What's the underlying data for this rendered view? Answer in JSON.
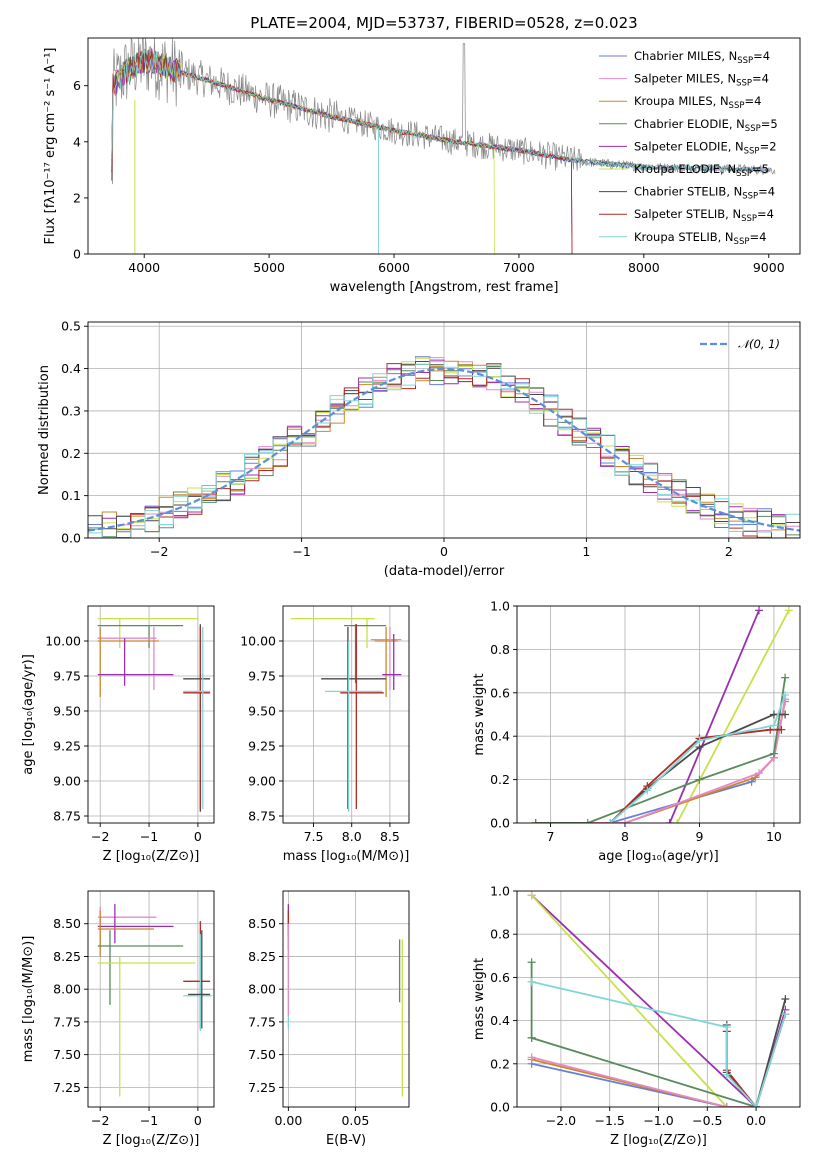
{
  "figure_title": "PLATE=2004, MJD=53737, FIBERID=0528, z=0.023",
  "series": [
    {
      "name": "Chabrier MILES",
      "nssp": "4",
      "color": "#6a7fd6"
    },
    {
      "name": "Salpeter MILES",
      "nssp": "4",
      "color": "#e58ac8"
    },
    {
      "name": "Kroupa MILES",
      "nssp": "4",
      "color": "#c8892e"
    },
    {
      "name": "Chabrier ELODIE",
      "nssp": "5",
      "color": "#5a8a5e"
    },
    {
      "name": "Salpeter ELODIE",
      "nssp": "2",
      "color": "#9b2fb0"
    },
    {
      "name": "Kroupa ELODIE",
      "nssp": "5",
      "color": "#c9e04a"
    },
    {
      "name": "Chabrier STELIB",
      "nssp": "4",
      "color": "#4a4a4a"
    },
    {
      "name": "Salpeter STELIB",
      "nssp": "4",
      "color": "#b22a22"
    },
    {
      "name": "Kroupa STELIB",
      "nssp": "4",
      "color": "#7fd6d8"
    }
  ],
  "chart_data": [
    {
      "id": "spectrum",
      "type": "line",
      "xlabel": "wavelength [Angstrom, rest frame]",
      "ylabel": "Flux [fλ10⁻¹⁷ erg cm⁻² s⁻¹ A⁻¹]",
      "xlim": [
        3550,
        9250
      ],
      "ylim": [
        0,
        7.7
      ],
      "xticks": [
        4000,
        5000,
        6000,
        7000,
        8000,
        9000
      ],
      "yticks": [
        0,
        2,
        4,
        6
      ],
      "grid": false,
      "legend": "top-right",
      "data_color": "#888888",
      "model_shape": {
        "x": [
          3750,
          3850,
          3950,
          4050,
          4200,
          4500,
          5000,
          5500,
          6000,
          6500,
          7000,
          7500,
          8000,
          8500,
          9000
        ],
        "y": [
          6.0,
          6.5,
          6.8,
          6.9,
          6.6,
          6.2,
          5.5,
          4.9,
          4.4,
          4.0,
          3.7,
          3.3,
          3.1,
          3.05,
          3.0
        ]
      }
    },
    {
      "id": "residuals",
      "type": "step",
      "xlabel": "(data-model)/error",
      "ylabel": "Normed distribution",
      "xlim": [
        -2.5,
        2.5
      ],
      "ylim": [
        0,
        0.51
      ],
      "xticks": [
        -2,
        -1,
        0,
        1,
        2
      ],
      "yticks": [
        0.0,
        0.1,
        0.2,
        0.3,
        0.4,
        0.5
      ],
      "grid": true,
      "legend": "top-right",
      "reference_curve": {
        "label": "𝒩(0, 1)",
        "mean": 0,
        "sigma": 1,
        "color": "#5b8fd9"
      }
    },
    {
      "id": "age_vs_Z",
      "type": "errorbar",
      "xlabel": "Z [log₁₀(Z/Z⊙)]",
      "ylabel": "age  [log₁₀(age/yr)]",
      "xlim": [
        -2.25,
        0.33
      ],
      "ylim": [
        8.7,
        10.25
      ],
      "xticks": [
        -2,
        -1,
        0
      ],
      "yticks": [
        8.75,
        9.0,
        9.25,
        9.5,
        9.75,
        10.0
      ],
      "grid": true,
      "points": [
        {
          "x": -1.6,
          "y": 10.16,
          "xlo": -2.05,
          "xhi": 0.0,
          "ylo": 9.95,
          "yhi": 10.16,
          "s": 5
        },
        {
          "x": -1.0,
          "y": 10.11,
          "xlo": -2.05,
          "xhi": -0.3,
          "ylo": 9.95,
          "yhi": 10.11,
          "s": 3
        },
        {
          "x": -0.9,
          "y": 10.02,
          "xlo": -2.05,
          "xhi": -0.85,
          "ylo": 9.65,
          "yhi": 10.1,
          "s": 1
        },
        {
          "x": -2.0,
          "y": 10.0,
          "xlo": -2.05,
          "xhi": -0.8,
          "ylo": 9.6,
          "yhi": 10.1,
          "s": 2
        },
        {
          "x": -1.5,
          "y": 9.76,
          "xlo": -2.05,
          "xhi": -0.5,
          "ylo": 9.68,
          "yhi": 10.02,
          "s": 4
        },
        {
          "x": 0.05,
          "y": 9.73,
          "xlo": -0.3,
          "xhi": 0.25,
          "ylo": 8.78,
          "yhi": 10.12,
          "s": 6
        },
        {
          "x": 0.05,
          "y": 9.63,
          "xlo": -0.3,
          "xhi": 0.25,
          "ylo": 8.8,
          "yhi": 10.1,
          "s": 7
        },
        {
          "x": 0.1,
          "y": 9.64,
          "xlo": -0.3,
          "xhi": 0.25,
          "ylo": 8.8,
          "yhi": 10.1,
          "s": 8
        }
      ]
    },
    {
      "id": "age_vs_mass",
      "type": "errorbar",
      "xlabel": "mass [log₁₀(M/M⊙)]",
      "ylabel": "",
      "xlim": [
        7.1,
        8.75
      ],
      "ylim": [
        8.7,
        10.25
      ],
      "xticks": [
        7.5,
        8.0,
        8.5
      ],
      "yticks": [
        8.75,
        9.0,
        9.25,
        9.5,
        9.75,
        10.0
      ],
      "grid": true,
      "points": [
        {
          "x": 8.2,
          "y": 10.16,
          "xlo": 7.2,
          "xhi": 8.3,
          "ylo": 9.95,
          "yhi": 10.16,
          "s": 5
        },
        {
          "x": 8.05,
          "y": 10.11,
          "xlo": 7.9,
          "xhi": 8.45,
          "ylo": 9.7,
          "yhi": 10.12,
          "s": 3
        },
        {
          "x": 8.5,
          "y": 10.01,
          "xlo": 8.25,
          "xhi": 8.65,
          "ylo": 9.65,
          "yhi": 10.1,
          "s": 1
        },
        {
          "x": 8.45,
          "y": 10.0,
          "xlo": 8.3,
          "xhi": 8.6,
          "ylo": 9.6,
          "yhi": 10.1,
          "s": 2
        },
        {
          "x": 8.55,
          "y": 9.76,
          "xlo": 8.4,
          "xhi": 8.65,
          "ylo": 9.65,
          "yhi": 10.05,
          "s": 4
        },
        {
          "x": 7.95,
          "y": 9.73,
          "xlo": 7.6,
          "xhi": 8.45,
          "ylo": 8.8,
          "yhi": 10.1,
          "s": 6
        },
        {
          "x": 8.06,
          "y": 9.63,
          "xlo": 7.85,
          "xhi": 8.42,
          "ylo": 8.8,
          "yhi": 10.12,
          "s": 7
        },
        {
          "x": 7.96,
          "y": 9.64,
          "xlo": 7.65,
          "xhi": 8.4,
          "ylo": 8.78,
          "yhi": 10.0,
          "s": 8
        }
      ]
    },
    {
      "id": "weight_vs_age",
      "type": "line",
      "xlabel": "age  [log₁₀(age/yr)]",
      "ylabel": "mass weight",
      "xlim": [
        6.55,
        10.35
      ],
      "ylim": [
        0,
        1.0
      ],
      "xticks": [
        7,
        8,
        9,
        10
      ],
      "yticks": [
        0.0,
        0.2,
        0.4,
        0.6,
        0.8,
        1.0
      ],
      "grid": true,
      "series": [
        {
          "s": 4,
          "x": [
            8.6,
            9.8
          ],
          "y": [
            0.0,
            0.98
          ]
        },
        {
          "s": 5,
          "x": [
            8.7,
            10.2
          ],
          "y": [
            0.0,
            0.98
          ]
        },
        {
          "s": 0,
          "x": [
            6.8,
            7.8,
            9.7,
            10.0,
            10.15
          ],
          "y": [
            0.0,
            0.0,
            0.19,
            0.3,
            0.57
          ]
        },
        {
          "s": 2,
          "x": [
            6.8,
            8.0,
            9.75,
            10.0,
            10.15
          ],
          "y": [
            0.0,
            0.0,
            0.21,
            0.3,
            0.56
          ]
        },
        {
          "s": 1,
          "x": [
            6.8,
            8.0,
            9.8,
            10.0,
            10.15
          ],
          "y": [
            0.0,
            0.0,
            0.23,
            0.3,
            0.57
          ]
        },
        {
          "s": 3,
          "x": [
            6.8,
            7.5,
            9.0,
            10.0,
            10.15
          ],
          "y": [
            0.0,
            0.0,
            0.2,
            0.32,
            0.67
          ]
        },
        {
          "s": 6,
          "x": [
            7.8,
            8.3,
            9.0,
            10.0,
            10.15
          ],
          "y": [
            0.0,
            0.16,
            0.35,
            0.5,
            0.5
          ]
        },
        {
          "s": 7,
          "x": [
            7.8,
            8.3,
            9.0,
            9.95,
            10.1
          ],
          "y": [
            0.0,
            0.17,
            0.39,
            0.43,
            0.43
          ]
        },
        {
          "s": 8,
          "x": [
            7.8,
            8.3,
            9.0,
            10.0,
            10.15
          ],
          "y": [
            0.0,
            0.15,
            0.38,
            0.45,
            0.59
          ]
        }
      ]
    },
    {
      "id": "mass_vs_Z",
      "type": "errorbar",
      "xlabel": "Z [log₁₀(Z/Z⊙)]",
      "ylabel": "mass [log₁₀(M/M⊙)]",
      "xlim": [
        -2.25,
        0.33
      ],
      "ylim": [
        7.1,
        8.75
      ],
      "xticks": [
        -2,
        -1,
        0
      ],
      "yticks": [
        7.25,
        7.5,
        7.75,
        8.0,
        8.25,
        8.5
      ],
      "grid": true,
      "points": [
        {
          "x": -2.0,
          "y": 8.55,
          "xlo": -2.05,
          "xhi": -0.85,
          "ylo": 8.3,
          "yhi": 8.63,
          "s": 1
        },
        {
          "x": -1.7,
          "y": 8.48,
          "xlo": -2.05,
          "xhi": -0.5,
          "ylo": 8.35,
          "yhi": 8.65,
          "s": 4
        },
        {
          "x": -2.0,
          "y": 8.46,
          "xlo": -2.05,
          "xhi": -0.9,
          "ylo": 8.25,
          "yhi": 8.6,
          "s": 2
        },
        {
          "x": -1.8,
          "y": 8.33,
          "xlo": -2.05,
          "xhi": -0.3,
          "ylo": 7.88,
          "yhi": 8.45,
          "s": 3
        },
        {
          "x": -1.6,
          "y": 8.2,
          "xlo": -2.05,
          "xhi": -0.05,
          "ylo": 7.18,
          "yhi": 8.25,
          "s": 5
        },
        {
          "x": 0.05,
          "y": 8.06,
          "xlo": -0.3,
          "xhi": 0.25,
          "ylo": 7.7,
          "yhi": 8.52,
          "s": 7
        },
        {
          "x": 0.05,
          "y": 7.95,
          "xlo": -0.3,
          "xhi": 0.3,
          "ylo": 7.68,
          "yhi": 8.42,
          "s": 8
        },
        {
          "x": 0.08,
          "y": 7.96,
          "xlo": -0.2,
          "xhi": 0.25,
          "ylo": 7.7,
          "yhi": 8.45,
          "s": 6
        }
      ]
    },
    {
      "id": "mass_vs_EBV",
      "type": "errorbar",
      "xlabel": "E(B-V)",
      "ylabel": "",
      "xlim": [
        -0.004,
        0.09
      ],
      "ylim": [
        7.1,
        8.75
      ],
      "xticks": [
        0.0,
        0.05
      ],
      "yticks": [
        7.25,
        7.5,
        7.75,
        8.0,
        8.25,
        8.5
      ],
      "grid": true,
      "points": [
        {
          "x": 0.0,
          "y": 8.55,
          "xlo": 0.0,
          "xhi": 0.0,
          "ylo": 8.3,
          "yhi": 8.65,
          "s": 4
        },
        {
          "x": 0.0,
          "y": 8.46,
          "xlo": 0.0,
          "xhi": 0.0,
          "ylo": 8.3,
          "yhi": 8.6,
          "s": 7
        },
        {
          "x": 0.0,
          "y": 8.1,
          "xlo": 0.0,
          "xhi": 0.0,
          "ylo": 7.7,
          "yhi": 8.4,
          "s": 8
        },
        {
          "x": 0.0,
          "y": 8.05,
          "xlo": 0.0,
          "xhi": 0.0,
          "ylo": 7.8,
          "yhi": 8.5,
          "s": 1
        },
        {
          "x": 0.085,
          "y": 8.2,
          "xlo": 0.085,
          "xhi": 0.085,
          "ylo": 7.18,
          "yhi": 8.38,
          "s": 5
        },
        {
          "x": 0.083,
          "y": 8.3,
          "xlo": 0.083,
          "xhi": 0.083,
          "ylo": 7.9,
          "yhi": 8.38,
          "s": 3
        }
      ]
    },
    {
      "id": "weight_vs_Z",
      "type": "line",
      "xlabel": "Z [log₁₀(Z/Z⊙)]",
      "ylabel": "mass weight",
      "xlim": [
        -2.45,
        0.45
      ],
      "ylim": [
        0,
        1.0
      ],
      "xticks": [
        -2.0,
        -1.5,
        -1.0,
        -0.5,
        0.0
      ],
      "yticks": [
        0.0,
        0.2,
        0.4,
        0.6,
        0.8,
        1.0
      ],
      "grid": true,
      "series": [
        {
          "s": 4,
          "x": [
            -2.3,
            0.0,
            0.3
          ],
          "y": [
            0.98,
            0.0,
            0.45
          ]
        },
        {
          "s": 5,
          "x": [
            -2.3,
            -0.3,
            0.0
          ],
          "y": [
            0.98,
            0.0,
            0.0
          ]
        },
        {
          "s": 0,
          "x": [
            -2.3,
            -0.3,
            0.0
          ],
          "y": [
            0.2,
            0.0,
            0.0
          ]
        },
        {
          "s": 2,
          "x": [
            -2.3,
            -0.3,
            0.0
          ],
          "y": [
            0.22,
            0.0,
            0.0
          ]
        },
        {
          "s": 1,
          "x": [
            -2.3,
            -0.3,
            0.0
          ],
          "y": [
            0.23,
            0.0,
            0.0
          ]
        },
        {
          "s": 3,
          "x": [
            -2.3,
            -2.3,
            -2.3,
            0.0
          ],
          "y": [
            0.67,
            0.32,
            0.32,
            0.0
          ]
        },
        {
          "s": 6,
          "x": [
            -0.3,
            -0.3,
            0.0,
            0.3
          ],
          "y": [
            0.38,
            0.16,
            0.0,
            0.5
          ]
        },
        {
          "s": 7,
          "x": [
            -0.3,
            -0.3,
            0.0,
            0.3
          ],
          "y": [
            0.35,
            0.17,
            0.0,
            0.43
          ]
        },
        {
          "s": 8,
          "x": [
            -2.3,
            -0.3,
            -0.3,
            0.0,
            0.3
          ],
          "y": [
            0.58,
            0.37,
            0.15,
            0.0,
            0.43
          ]
        }
      ]
    }
  ]
}
